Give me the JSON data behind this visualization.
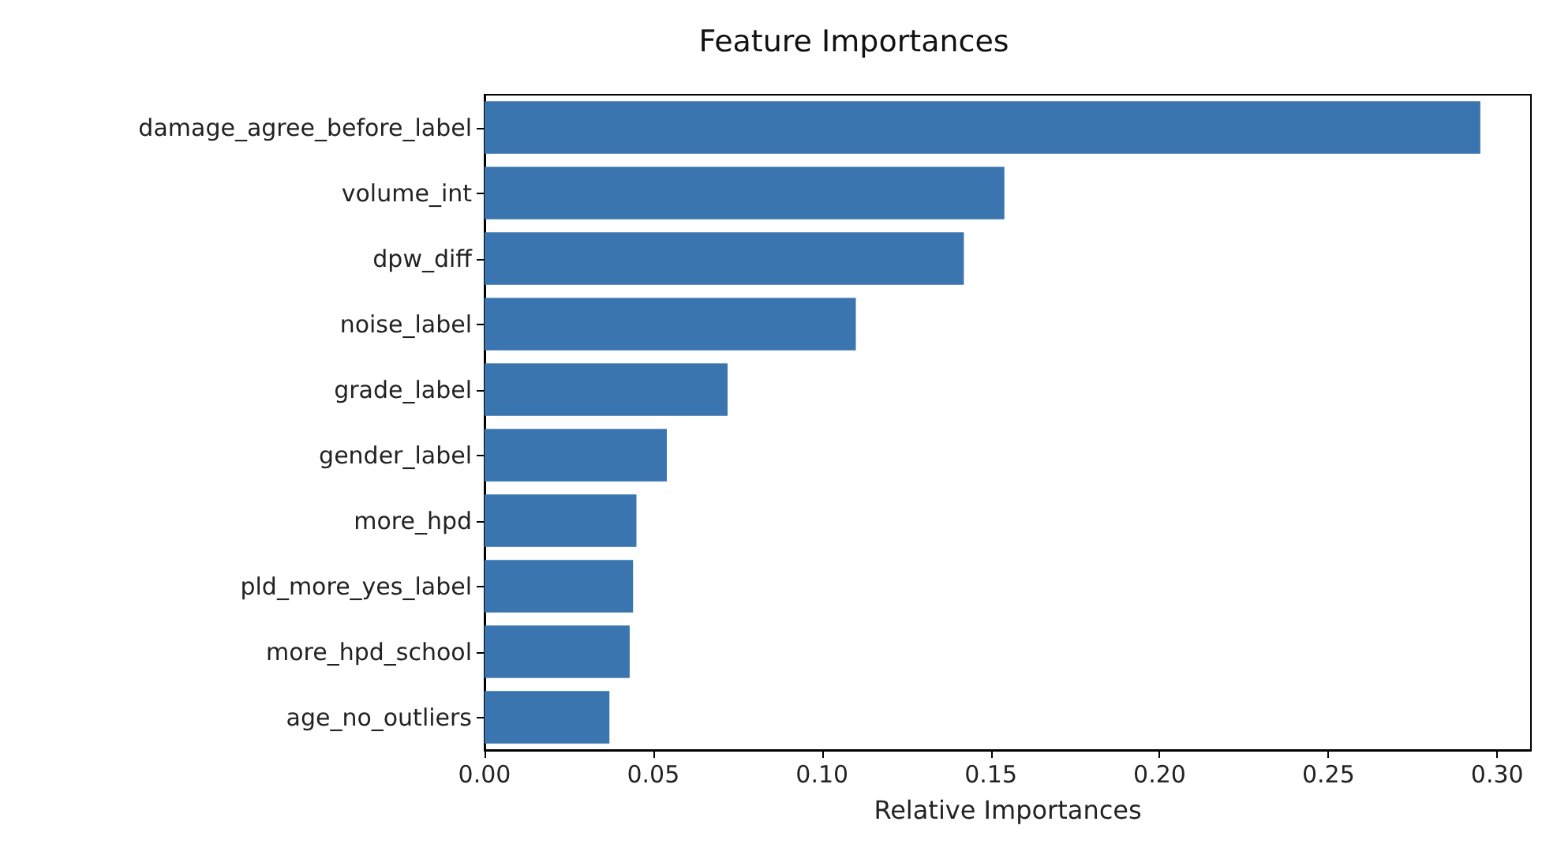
{
  "chart_data": {
    "type": "bar",
    "orientation": "horizontal",
    "title": "Feature Importances",
    "xlabel": "Relative Importances",
    "categories": [
      "damage_agree_before_label",
      "volume_int",
      "dpw_diff",
      "noise_label",
      "grade_label",
      "gender_label",
      "more_hpd",
      "pld_more_yes_label",
      "more_hpd_school",
      "age_no_outliers"
    ],
    "values": [
      0.295,
      0.154,
      0.142,
      0.11,
      0.072,
      0.054,
      0.045,
      0.044,
      0.043,
      0.037
    ],
    "color": "#3a75b0",
    "xlim": [
      0,
      0.31
    ],
    "xticks": [
      {
        "value": 0,
        "label": "0.00"
      },
      {
        "value": 0.05,
        "label": "0.05"
      },
      {
        "value": 0.1,
        "label": "0.10"
      },
      {
        "value": 0.15,
        "label": "0.15"
      },
      {
        "value": 0.2,
        "label": "0.20"
      },
      {
        "value": 0.25,
        "label": "0.25"
      },
      {
        "value": 0.3,
        "label": "0.30"
      }
    ],
    "grid": false
  }
}
